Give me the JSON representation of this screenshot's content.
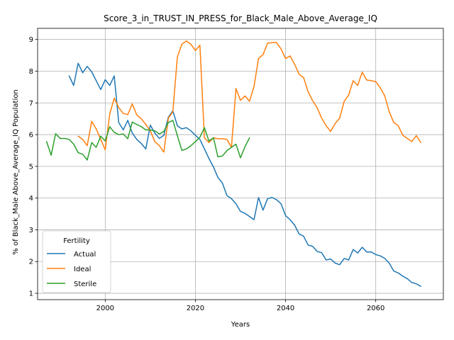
{
  "chart_data": {
    "type": "line",
    "title": "Score_3_in_TRUST_IN_PRESS_for_Black_Male_Above_Average_IQ",
    "xlabel": "Years",
    "ylabel": "% of Black_Male Above_Average_IQ Population",
    "xlim": [
      1985,
      2075
    ],
    "ylim": [
      0.8,
      9.35
    ],
    "xticks": [
      2000,
      2020,
      2040,
      2060
    ],
    "yticks": [
      1,
      2,
      3,
      4,
      5,
      6,
      7,
      8,
      9
    ],
    "grid": true,
    "legend": {
      "title": "Fertility",
      "position": "lower-left"
    },
    "series": [
      {
        "name": "Actual",
        "color": "#1f77b4",
        "x": [
          1992,
          1993,
          1994,
          1995,
          1996,
          1997,
          1998,
          1999,
          2000,
          2001,
          2002,
          2003,
          2004,
          2005,
          2006,
          2007,
          2008,
          2009,
          2010,
          2011,
          2012,
          2013,
          2014,
          2015,
          2016,
          2017,
          2018,
          2019,
          2020,
          2021,
          2022,
          2023,
          2024,
          2025,
          2026,
          2027,
          2028,
          2029,
          2030,
          2031,
          2032,
          2033,
          2034,
          2035,
          2036,
          2037,
          2038,
          2039,
          2040,
          2041,
          2042,
          2043,
          2044,
          2045,
          2046,
          2047,
          2048,
          2049,
          2050,
          2051,
          2052,
          2053,
          2054,
          2055,
          2056,
          2057,
          2058,
          2059,
          2060,
          2061,
          2062,
          2063,
          2064,
          2065,
          2066,
          2067,
          2068,
          2069,
          2070
        ],
        "values": [
          7.85,
          7.55,
          8.25,
          7.95,
          8.15,
          7.98,
          7.7,
          7.42,
          7.73,
          7.55,
          7.85,
          6.38,
          6.15,
          6.45,
          6.05,
          5.85,
          5.72,
          5.55,
          6.3,
          6.05,
          5.88,
          5.98,
          6.55,
          6.75,
          6.28,
          6.18,
          6.22,
          6.12,
          5.98,
          5.85,
          5.55,
          5.25,
          4.98,
          4.65,
          4.47,
          4.08,
          3.98,
          3.82,
          3.58,
          3.52,
          3.42,
          3.32,
          4.02,
          3.62,
          3.98,
          4.02,
          3.95,
          3.82,
          3.45,
          3.32,
          3.15,
          2.87,
          2.8,
          2.52,
          2.48,
          2.32,
          2.28,
          2.05,
          2.08,
          1.95,
          1.9,
          2.1,
          2.05,
          2.38,
          2.27,
          2.45,
          2.3,
          2.3,
          2.22,
          2.18,
          2.1,
          1.95,
          1.7,
          1.64,
          1.54,
          1.46,
          1.34,
          1.3,
          1.22
        ]
      },
      {
        "name": "Ideal",
        "color": "#ff7f0e",
        "x": [
          1994,
          1995,
          1996,
          1997,
          1998,
          1999,
          2000,
          2001,
          2002,
          2003,
          2004,
          2005,
          2006,
          2007,
          2008,
          2009,
          2010,
          2011,
          2012,
          2013,
          2014,
          2015,
          2016,
          2017,
          2018,
          2019,
          2020,
          2021,
          2022,
          2023,
          2024,
          2025,
          2026,
          2027,
          2028,
          2029,
          2030,
          2031,
          2032,
          2033,
          2034,
          2035,
          2036,
          2037,
          2038,
          2039,
          2040,
          2041,
          2042,
          2043,
          2044,
          2045,
          2046,
          2047,
          2048,
          2049,
          2050,
          2051,
          2052,
          2053,
          2054,
          2055,
          2056,
          2057,
          2058,
          2059,
          2060,
          2061,
          2062,
          2063,
          2064,
          2065,
          2066,
          2067,
          2068,
          2069,
          2070
        ],
        "values": [
          5.95,
          5.85,
          5.65,
          6.42,
          6.18,
          5.85,
          5.52,
          6.65,
          7.15,
          6.85,
          6.67,
          6.63,
          6.97,
          6.62,
          6.5,
          6.32,
          6.12,
          5.78,
          5.65,
          5.45,
          6.52,
          6.72,
          8.45,
          8.85,
          8.95,
          8.85,
          8.65,
          8.82,
          5.9,
          5.75,
          5.9,
          5.87,
          5.87,
          5.85,
          5.6,
          7.45,
          7.08,
          7.22,
          7.05,
          7.52,
          8.4,
          8.52,
          8.88,
          8.9,
          8.9,
          8.7,
          8.4,
          8.48,
          8.22,
          7.9,
          7.8,
          7.35,
          7.07,
          6.85,
          6.52,
          6.28,
          6.1,
          6.35,
          6.52,
          7.05,
          7.25,
          7.7,
          7.55,
          7.97,
          7.72,
          7.7,
          7.67,
          7.48,
          7.22,
          6.72,
          6.38,
          6.28,
          5.98,
          5.88,
          5.78,
          5.97,
          5.75
        ]
      },
      {
        "name": "Sterile",
        "color": "#2ca02c",
        "x": [
          1987,
          1988,
          1989,
          1990,
          1991,
          1992,
          1993,
          1994,
          1995,
          1996,
          1997,
          1998,
          1999,
          2000,
          2001,
          2002,
          2003,
          2004,
          2005,
          2006,
          2007,
          2008,
          2009,
          2010,
          2011,
          2012,
          2013,
          2014,
          2015,
          2016,
          2017,
          2018,
          2019,
          2020,
          2021,
          2022,
          2023,
          2024,
          2025,
          2026,
          2027,
          2028,
          2029,
          2030,
          2031,
          2032
        ],
        "values": [
          5.78,
          5.35,
          6.03,
          5.88,
          5.88,
          5.85,
          5.7,
          5.43,
          5.38,
          5.2,
          5.75,
          5.6,
          5.95,
          5.8,
          6.25,
          6.07,
          6.0,
          6.02,
          5.87,
          6.4,
          6.32,
          6.25,
          6.15,
          6.15,
          6.12,
          6.02,
          6.1,
          6.38,
          6.45,
          5.97,
          5.5,
          5.55,
          5.65,
          5.78,
          5.92,
          6.22,
          5.8,
          5.9,
          5.3,
          5.33,
          5.5,
          5.6,
          5.7,
          5.27,
          5.62,
          5.9
        ]
      }
    ]
  }
}
